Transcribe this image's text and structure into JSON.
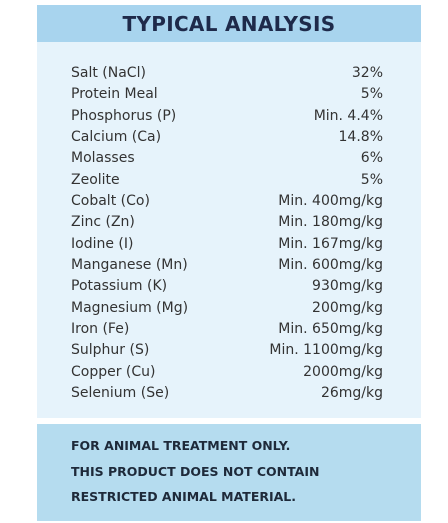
{
  "header": {
    "title": "TYPICAL ANALYSIS"
  },
  "table": {
    "rows": [
      [
        "Salt (NaCl)",
        "32%"
      ],
      [
        "Protein Meal",
        "5%"
      ],
      [
        "Phosphorus (P)",
        "Min. 4.4%"
      ],
      [
        "Calcium (Ca)",
        "14.8%"
      ],
      [
        "Molasses",
        "6%"
      ],
      [
        "Zeolite",
        "5%"
      ],
      [
        "Cobalt (Co)",
        "Min. 400mg/kg"
      ],
      [
        "Zinc (Zn)",
        "Min. 180mg/kg"
      ],
      [
        "Iodine (I)",
        "Min. 167mg/kg"
      ],
      [
        "Manganese (Mn)",
        "Min. 600mg/kg"
      ],
      [
        "Potassium (K)",
        "930mg/kg"
      ],
      [
        "Magnesium (Mg)",
        "200mg/kg"
      ],
      [
        "Iron (Fe)",
        "Min. 650mg/kg"
      ],
      [
        "Sulphur (S)",
        "Min. 1100mg/kg"
      ],
      [
        "Copper (Cu)",
        "2000mg/kg"
      ],
      [
        "Selenium (Se)",
        "26mg/kg"
      ]
    ]
  },
  "footer": {
    "lines": [
      "FOR ANIMAL TREATMENT ONLY.",
      "THIS PRODUCT DOES NOT CONTAIN",
      "RESTRICTED ANIMAL MATERIAL."
    ]
  }
}
